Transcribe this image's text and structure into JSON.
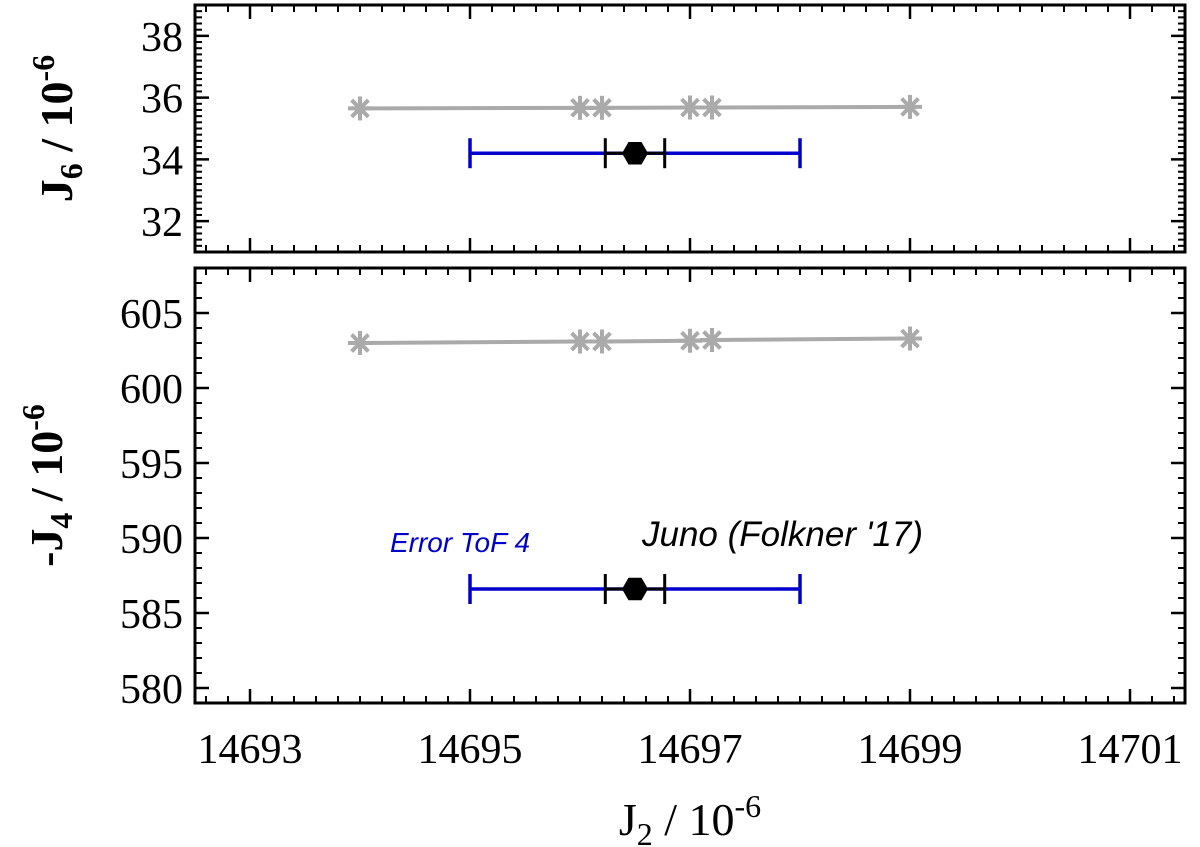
{
  "chart_data": [
    {
      "type": "scatter",
      "ylabel": {
        "main": "J",
        "sub": "6",
        "rest": " / 10",
        "sup": "-6"
      },
      "xlim": [
        14692.5,
        14701.5
      ],
      "xticks": [
        14693,
        14695,
        14697,
        14699,
        14701
      ],
      "ylim": [
        31,
        39
      ],
      "yticks": [
        32,
        34,
        36,
        38
      ],
      "series": [
        {
          "color": "#aaaaaa",
          "marker": "asterisk",
          "line": true,
          "x": [
            14694,
            14696,
            14696.2,
            14697,
            14697.2,
            14699
          ],
          "values": [
            35.65,
            35.67,
            35.67,
            35.68,
            35.68,
            35.7
          ]
        },
        {
          "color": "#0000cc",
          "marker": "none",
          "x": [
            14696.5
          ],
          "values": [
            34.2
          ],
          "xerr": [
            1.5
          ]
        },
        {
          "color": "#000000",
          "marker": "hexagon",
          "x": [
            14696.5
          ],
          "values": [
            34.2
          ],
          "xerr": [
            0.27
          ]
        }
      ]
    },
    {
      "type": "scatter",
      "ylabel": {
        "main": "-J",
        "sub": "4",
        "rest": " / 10",
        "sup": "-6"
      },
      "xlabel": {
        "main": "J",
        "sub": "2",
        "rest": "  / 10",
        "sup": "-6"
      },
      "xlim": [
        14692.5,
        14701.5
      ],
      "xticks": [
        14693,
        14695,
        14697,
        14699,
        14701
      ],
      "ylim": [
        579,
        608
      ],
      "yticks": [
        580,
        585,
        590,
        595,
        600,
        605
      ],
      "series": [
        {
          "color": "#aaaaaa",
          "marker": "asterisk",
          "line": true,
          "x": [
            14694,
            14696,
            14696.2,
            14697,
            14697.2,
            14699
          ],
          "values": [
            603.0,
            603.1,
            603.1,
            603.15,
            603.2,
            603.3
          ]
        },
        {
          "color": "#0000cc",
          "marker": "none",
          "x": [
            14696.5
          ],
          "values": [
            586.6
          ],
          "xerr": [
            1.5
          ]
        },
        {
          "color": "#000000",
          "marker": "hexagon",
          "x": [
            14696.5
          ],
          "values": [
            586.6
          ],
          "xerr": [
            0.27
          ]
        }
      ],
      "annotations": [
        {
          "text": "Error ToF 4",
          "color": "#0000cc"
        },
        {
          "text": "Juno (Folkner '17)",
          "color": "#000000"
        }
      ]
    }
  ]
}
